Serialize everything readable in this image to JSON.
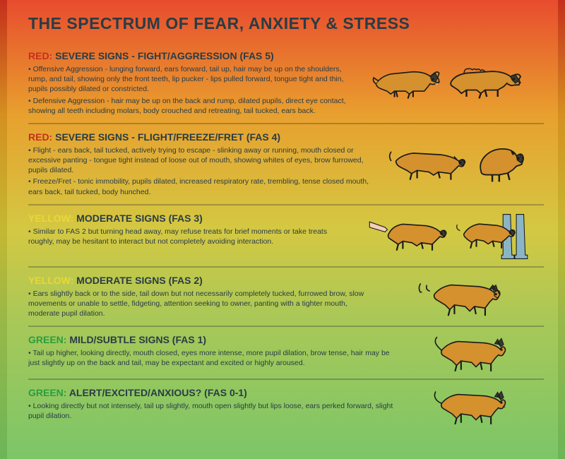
{
  "title": "THE SPECTRUM OF FEAR, ANXIETY & STRESS",
  "colors": {
    "prefix_red": "#c62f1c",
    "prefix_yellow": "#e8d838",
    "prefix_green": "#2a9d3f",
    "text_dark": "#293c45",
    "dog_fill": "#d4912e",
    "dog_stroke": "#1a1a1a",
    "dog_dark": "#3a3a30"
  },
  "sections": [
    {
      "prefix": "RED:",
      "prefix_class": "prefix-red",
      "heading": " SEVERE SIGNS - FIGHT/AGGRESSION (FAS 5)",
      "text_width": 470,
      "illus_width": 250,
      "bullets": [
        "Offensive Aggression - lunging forward, ears forward, tail up, hair may be up on the shoulders, rump, and tail, showing only the front teeth, lip pucker - lips pulled forward, tongue tight and thin, pupils possibly dilated or constricted.",
        "Defensive Aggression - hair may be up on the back and rump, dilated pupils, direct eye contact, showing all teeth including molars, body crouched and retreating, tail tucked, ears back."
      ],
      "dogs": [
        "aggressive1",
        "aggressive2"
      ]
    },
    {
      "prefix": "RED:",
      "prefix_class": "prefix-red",
      "heading": " SEVERE SIGNS - FLIGHT/FREEZE/FRET (FAS 4)",
      "text_width": 490,
      "illus_width": 230,
      "bullets": [
        "Flight - ears back, tail tucked, actively trying to escape - slinking away or running, mouth closed or excessive panting - tongue tight instead of loose out of mouth, showing whites of eyes, brow furrowed, pupils dilated.",
        "Freeze/Fret - tonic immobility, pupils dilated, increased respiratory rate, trembling, tense closed mouth, ears back, tail tucked, body hunched."
      ],
      "dogs": [
        "flight",
        "freeze"
      ]
    },
    {
      "prefix": "YELLOW:",
      "prefix_class": "prefix-yellow",
      "heading": " MODERATE SIGNS (FAS 3)",
      "text_width": 470,
      "illus_width": 250,
      "bullets": [
        "Similar to FAS 2 but turning head away, may refuse treats for brief moments or take treats roughly, may be hesitant to interact but not completely avoiding interaction."
      ],
      "dogs": [
        "moderate3a",
        "moderate3b"
      ]
    },
    {
      "prefix": "YELLOW:",
      "prefix_class": "prefix-yellow",
      "heading": " MODERATE SIGNS (FAS 2)",
      "text_width": 500,
      "illus_width": 220,
      "bullets": [
        "Ears slightly back or to the side, tail down but not necessarily completely tucked, furrowed brow, slow movements or unable to settle, fidgeting, attention seeking to owner, panting with a tighter mouth, moderate pupil dilation."
      ],
      "dogs": [
        "moderate2"
      ]
    },
    {
      "prefix": "GREEN:",
      "prefix_class": "prefix-green",
      "heading": " MILD/SUBTLE SIGNS (FAS 1)",
      "text_width": 530,
      "illus_width": 190,
      "bullets": [
        "Tail up higher, looking directly, mouth closed, eyes more intense, more pupil dilation, brow tense, hair may be just slightly up on the back and tail, may be expectant and excited or highly aroused."
      ],
      "dogs": [
        "mild"
      ]
    },
    {
      "prefix": "GREEN:",
      "prefix_class": "prefix-green",
      "heading": " ALERT/EXCITED/ANXIOUS? (FAS 0-1)",
      "text_width": 530,
      "illus_width": 190,
      "bullets": [
        "Looking directly but not intensely, tail up slightly, mouth open slightly but lips loose, ears perked forward, slight pupil dilation."
      ],
      "dogs": [
        "alert"
      ]
    }
  ]
}
